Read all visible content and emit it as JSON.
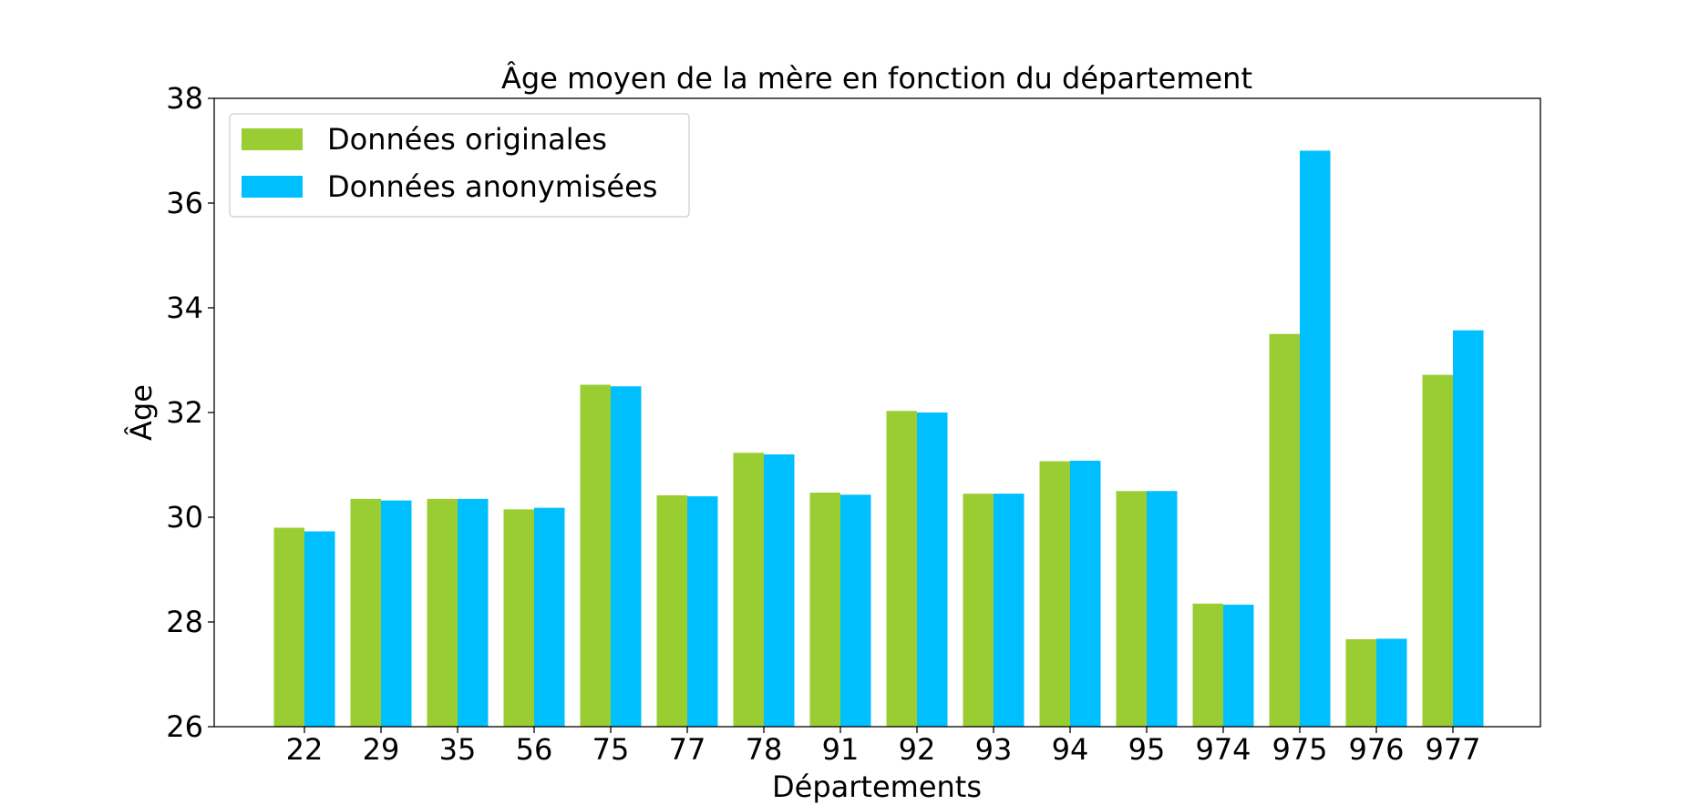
{
  "chart_data": {
    "type": "bar",
    "title": "Âge moyen de la mère en fonction du département",
    "xlabel": "Départements",
    "ylabel": "Âge",
    "ylim": [
      26,
      38
    ],
    "yticks": [
      26,
      28,
      30,
      32,
      34,
      36,
      38
    ],
    "grid": false,
    "legend_position": "top-left",
    "categories": [
      "22",
      "29",
      "35",
      "56",
      "75",
      "77",
      "78",
      "91",
      "92",
      "93",
      "94",
      "95",
      "974",
      "975",
      "976",
      "977"
    ],
    "series": [
      {
        "name": "Données originales",
        "color": "#9acd32",
        "values": [
          29.8,
          30.35,
          30.35,
          30.15,
          32.53,
          30.42,
          31.23,
          30.47,
          32.03,
          30.45,
          31.07,
          30.5,
          28.35,
          33.5,
          27.67,
          32.72
        ]
      },
      {
        "name": "Données anonymisées",
        "color": "#00bfff",
        "values": [
          29.73,
          30.32,
          30.35,
          30.18,
          32.5,
          30.4,
          31.2,
          30.43,
          32.0,
          30.45,
          31.08,
          30.5,
          28.33,
          37.0,
          27.68,
          33.57
        ]
      }
    ]
  }
}
